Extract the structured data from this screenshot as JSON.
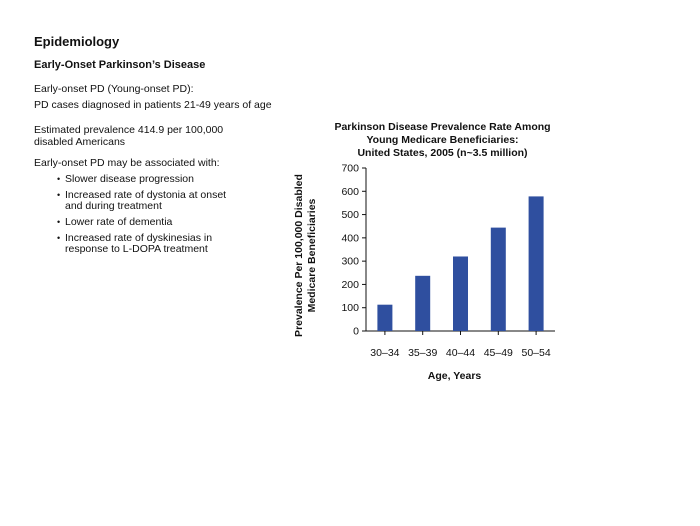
{
  "slide": {
    "title": "Epidemiology",
    "subtitle": "Early-Onset Parkinson’s Disease",
    "definition_heading": "Early-onset PD (Young-onset PD):",
    "definition_text": "PD cases diagnosed in patients 21-49 years of age",
    "prevalence_line1": "Estimated prevalence 414.9 per 100,000",
    "prevalence_line2": "disabled Americans",
    "associations_heading": "Early-onset PD may be associated with:",
    "bullets": [
      {
        "line1": "Slower disease progression",
        "line2": ""
      },
      {
        "line1": "Increased rate of dystonia at onset",
        "line2": "and during treatment"
      },
      {
        "line1": "Lower rate of dementia",
        "line2": ""
      },
      {
        "line1": "Increased rate of dyskinesias in",
        "line2": "response to L-DOPA treatment"
      }
    ]
  },
  "chart_data": {
    "type": "bar",
    "title_lines": [
      "Parkinson Disease Prevalence Rate Among",
      "Young Medicare Beneficiaries:",
      "United States, 2005 (n~3.5 million)"
    ],
    "categories": [
      "30–34",
      "35–39",
      "40–44",
      "45–49",
      "50–54"
    ],
    "values": [
      113,
      237,
      320,
      444,
      578
    ],
    "xlabel": "Age, Years",
    "ylabel_lines": [
      "Prevalence Per 100,000 Disabled",
      "Medicare Beneficiaries"
    ],
    "ylim": [
      0,
      700
    ],
    "yticks": [
      0,
      100,
      200,
      300,
      400,
      500,
      600,
      700
    ],
    "grid": false,
    "legend": "none",
    "bar_color": "#2f4f9f"
  }
}
